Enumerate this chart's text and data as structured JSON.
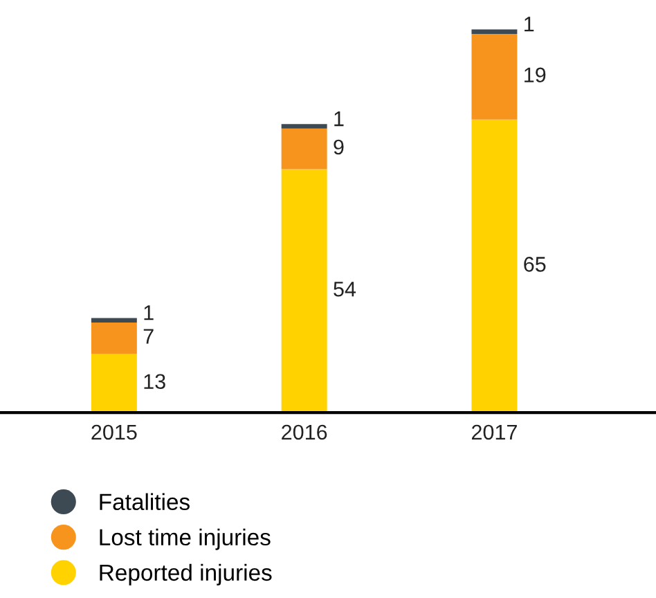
{
  "chart_data": {
    "type": "bar",
    "stacked": true,
    "categories": [
      "2015",
      "2016",
      "2017"
    ],
    "series": [
      {
        "name": "Reported injuries",
        "color": "#ffd200",
        "values": [
          13,
          54,
          65
        ]
      },
      {
        "name": "Lost time injuries",
        "color": "#f7941d",
        "values": [
          7,
          9,
          19
        ]
      },
      {
        "name": "Fatalities",
        "color": "#3d4a54",
        "values": [
          1,
          1,
          1
        ]
      }
    ],
    "data_labels": true,
    "legend": "bottom",
    "grid": false
  }
}
